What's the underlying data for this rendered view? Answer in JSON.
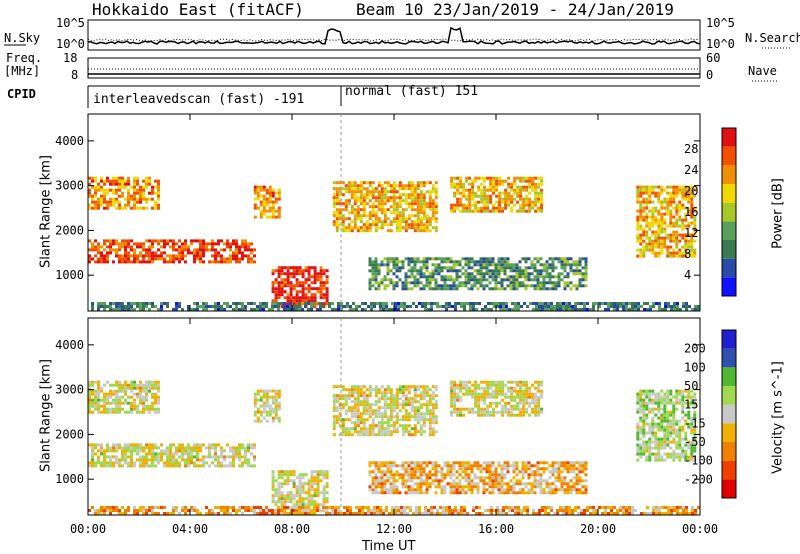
{
  "header": {
    "title": "Hokkaido East (fitACF)",
    "beam_info": "Beam 10  23/Jan/2019 - 24/Jan/2019"
  },
  "left_labels": {
    "nsky": "N.Sky",
    "freq": "Freq.",
    "freq_unit": "[MHz]",
    "cpid": "CPID"
  },
  "right_labels": {
    "nsearch": "N.Search",
    "nave": "Nave"
  },
  "noise_axis": {
    "left_ticks": [
      "10^5",
      "10^0"
    ],
    "right_ticks": [
      "10^5",
      "10^0"
    ]
  },
  "freq_axis": {
    "left_ticks": [
      "18",
      "8"
    ],
    "right_ticks": [
      "60",
      "0"
    ]
  },
  "cpid": {
    "segments": [
      {
        "label": "interleavedscan (fast) -191",
        "start_hour": 0,
        "end_hour": 10
      },
      {
        "label": "normal (fast) 151",
        "start_hour": 10,
        "end_hour": 24
      }
    ]
  },
  "power_colorbar": {
    "label": "Power [dB]",
    "ticks": [
      "28",
      "24",
      "20",
      "16",
      "12",
      "8",
      "4"
    ]
  },
  "velocity_colorbar": {
    "label": "Velocity [m s^-1]",
    "ticks": [
      "200",
      "100",
      "50",
      "15",
      "-15",
      "-50",
      "-100",
      "-200"
    ]
  },
  "axes": {
    "ylabel": "Slant Range [km]",
    "xlabel": "Time UT"
  },
  "chart_data": {
    "type": "heatmap",
    "title": "Hokkaido East (fitACF)",
    "xlabel": "Time UT",
    "ylabel": "Slant Range [km]",
    "x_ticks": [
      "00:00",
      "04:00",
      "08:00",
      "12:00",
      "16:00",
      "20:00",
      "00:00"
    ],
    "xlim_hours": [
      0,
      24
    ],
    "y_ticks": [
      1000,
      2000,
      3000,
      4000
    ],
    "ylim": [
      200,
      4600
    ],
    "panels": [
      {
        "name": "Power",
        "unit": "dB",
        "range": [
          0,
          30
        ],
        "colors": [
          "#1010ff",
          "#2a4aa8",
          "#3a7a50",
          "#5aa05a",
          "#a8c828",
          "#f0d800",
          "#f09000",
          "#f05000",
          "#e01010"
        ],
        "regions": [
          {
            "t": [
              0,
              6.5
            ],
            "r": [
              1300,
              1800
            ],
            "v": 26
          },
          {
            "t": [
              0,
              2.8
            ],
            "r": [
              2500,
              3200
            ],
            "v": 22
          },
          {
            "t": [
              6.5,
              7.5
            ],
            "r": [
              2300,
              3000
            ],
            "v": 22
          },
          {
            "t": [
              7.2,
              9.4
            ],
            "r": [
              300,
              1200
            ],
            "v": 28
          },
          {
            "t": [
              9.6,
              13.6
            ],
            "r": [
              2000,
              3100
            ],
            "v": 20
          },
          {
            "t": [
              14.2,
              17.8
            ],
            "r": [
              2400,
              3200
            ],
            "v": 20
          },
          {
            "t": [
              11,
              19.5
            ],
            "r": [
              700,
              1400
            ],
            "v": 10
          },
          {
            "t": [
              21.5,
              23.8
            ],
            "r": [
              1400,
              3000
            ],
            "v": 20
          },
          {
            "t": [
              0,
              24
            ],
            "r": [
              250,
              400
            ],
            "v": 8
          }
        ]
      },
      {
        "name": "Velocity",
        "unit": "m s^-1",
        "range": [
          -250,
          250
        ],
        "colors": [
          "#e00000",
          "#f04000",
          "#f08000",
          "#f0b000",
          "#c8c8c8",
          "#a0d850",
          "#50b830",
          "#3050b0",
          "#2020d0"
        ],
        "regions": [
          {
            "t": [
              0,
              6.5
            ],
            "r": [
              1300,
              1800
            ],
            "v": 0
          },
          {
            "t": [
              0,
              2.8
            ],
            "r": [
              2500,
              3200
            ],
            "v": 0
          },
          {
            "t": [
              6.5,
              7.5
            ],
            "r": [
              2300,
              3000
            ],
            "v": 0
          },
          {
            "t": [
              7.2,
              9.4
            ],
            "r": [
              300,
              1200
            ],
            "v": 0
          },
          {
            "t": [
              9.6,
              13.6
            ],
            "r": [
              2000,
              3100
            ],
            "v": 0
          },
          {
            "t": [
              14.2,
              17.8
            ],
            "r": [
              2400,
              3200
            ],
            "v": 0
          },
          {
            "t": [
              11,
              19.5
            ],
            "r": [
              700,
              1400
            ],
            "v": -60
          },
          {
            "t": [
              21.5,
              23.8
            ],
            "r": [
              1400,
              3000
            ],
            "v": 40
          },
          {
            "t": [
              0,
              24
            ],
            "r": [
              250,
              400
            ],
            "v": -80
          }
        ]
      }
    ]
  }
}
